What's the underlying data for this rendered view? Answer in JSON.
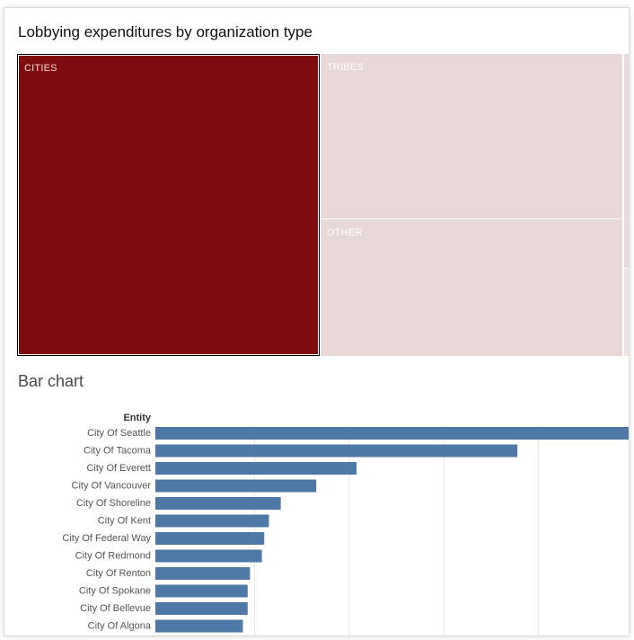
{
  "title": "Lobbying expenditures by organization type",
  "treemap": {
    "tiles": [
      {
        "name": "cities",
        "label": "CITIES",
        "color": "#7f0b0e",
        "selected": true
      },
      {
        "name": "tribes",
        "label": "TRIBES",
        "color": "#e8d8d8",
        "selected": false
      },
      {
        "name": "other",
        "label": "OTHER",
        "color": "#e8d8d8",
        "selected": false
      }
    ]
  },
  "bar_section_title": "Bar chart",
  "chart_data": {
    "type": "bar",
    "orientation": "horizontal",
    "category_header": "Entity",
    "categories": [
      "City Of Seattle",
      "City Of Tacoma",
      "City Of Everett",
      "City Of Vancouver",
      "City Of Shoreline",
      "City Of Kent",
      "City Of Federal Way",
      "City Of Redmond",
      "City Of Renton",
      "City Of Spokane",
      "City Of Bellevue",
      "City Of Algona"
    ],
    "values": [
      100,
      76.5,
      42.5,
      34,
      26.5,
      24,
      23,
      22.5,
      20,
      19.5,
      19.5,
      18.5
    ],
    "xlim": [
      0,
      100
    ],
    "grid": true,
    "bar_color": "#4e79a7"
  }
}
